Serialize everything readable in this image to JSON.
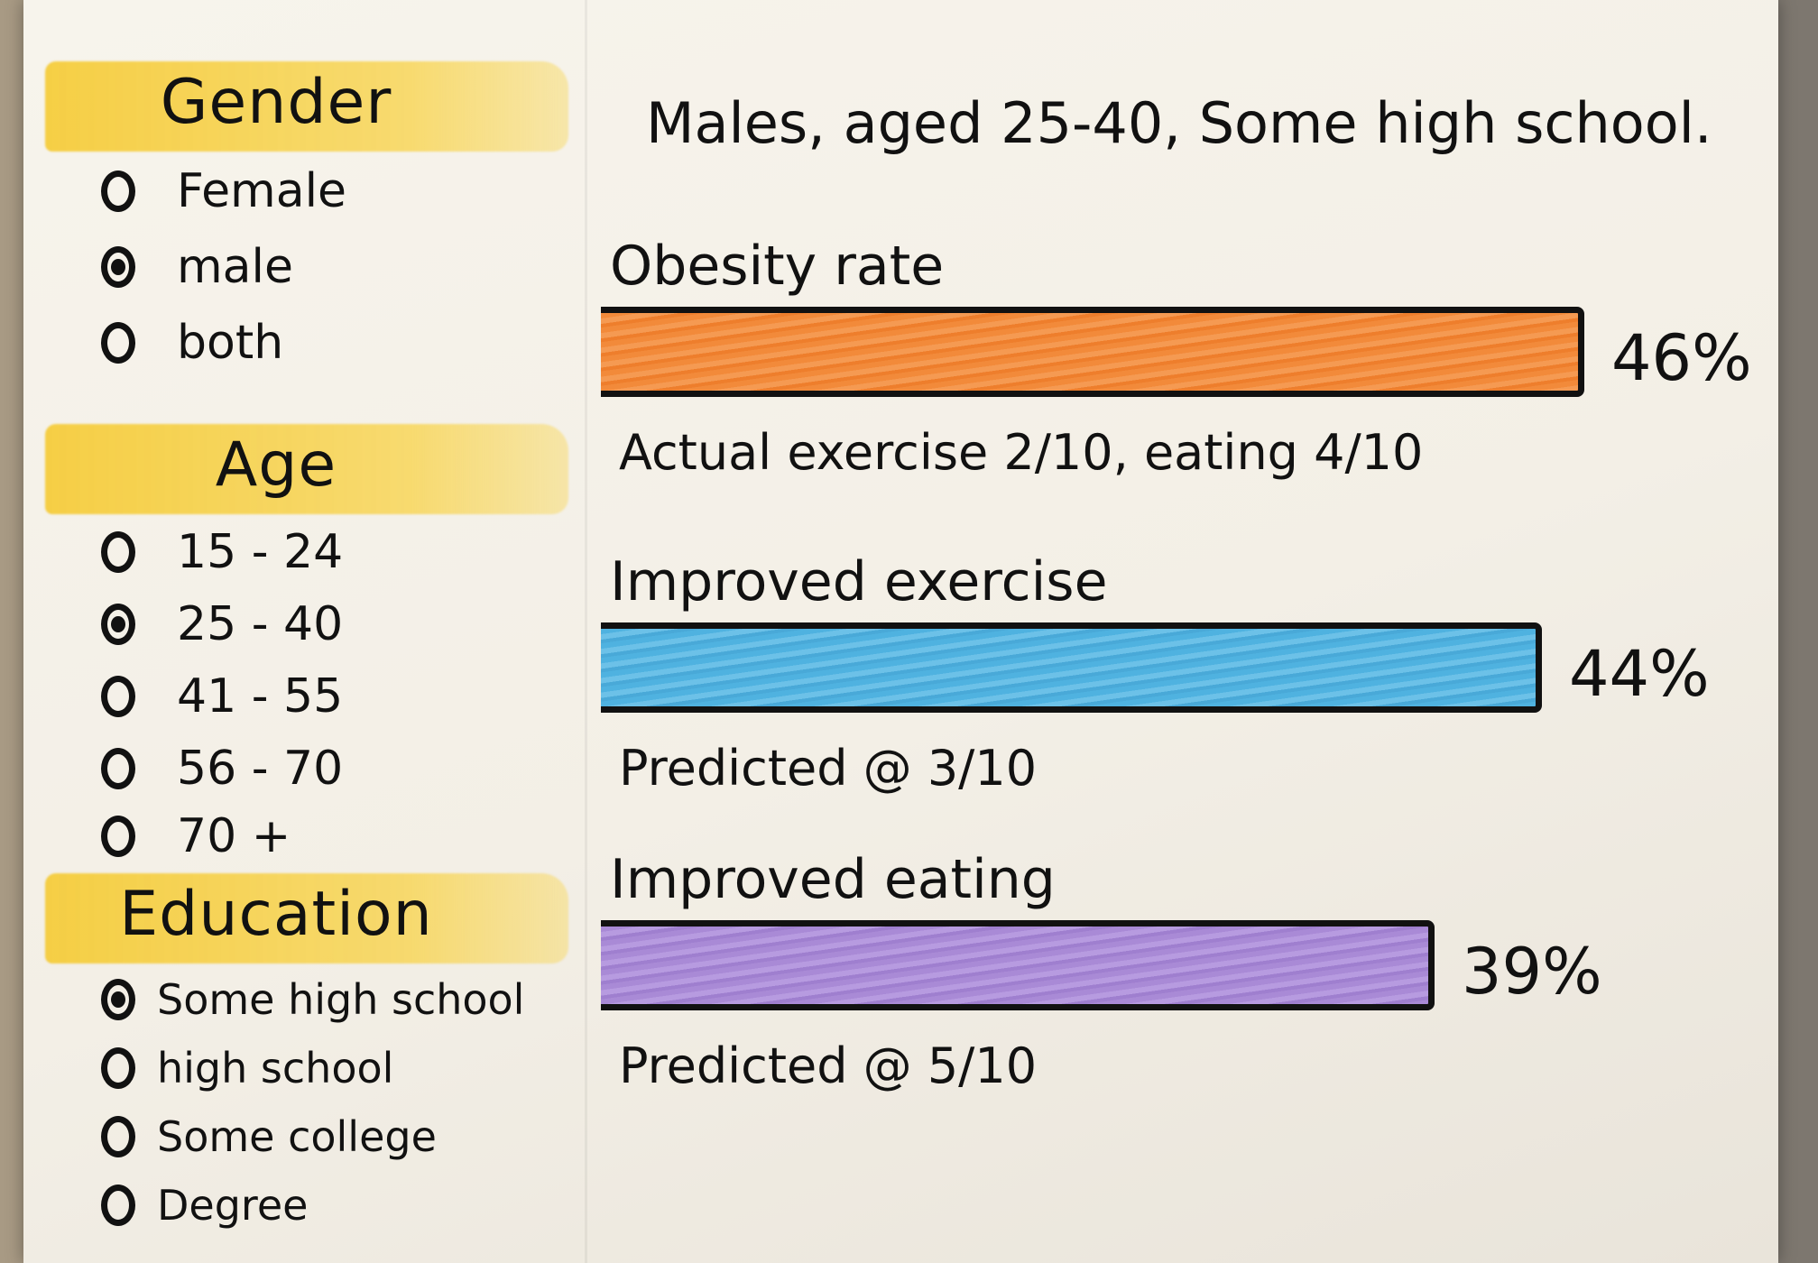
{
  "filters": {
    "gender": {
      "title": "Gender",
      "options": [
        {
          "label": "Female",
          "selected": false
        },
        {
          "label": "male",
          "selected": true
        },
        {
          "label": "both",
          "selected": false
        }
      ]
    },
    "age": {
      "title": "Age",
      "options": [
        {
          "label": "15 - 24",
          "selected": false
        },
        {
          "label": "25 - 40",
          "selected": true
        },
        {
          "label": "41 - 55",
          "selected": false
        },
        {
          "label": "56 - 70",
          "selected": false
        },
        {
          "label": "70 +",
          "selected": false
        }
      ]
    },
    "education": {
      "title": "Education",
      "options": [
        {
          "label": "Some high school",
          "selected": true
        },
        {
          "label": "high school",
          "selected": false
        },
        {
          "label": "Some college",
          "selected": false
        },
        {
          "label": "Degree",
          "selected": false
        }
      ]
    }
  },
  "results": {
    "summary": "Males, aged 25-40, Some high school.",
    "metrics": [
      {
        "title": "Obesity rate",
        "value": 46,
        "value_label": "46%",
        "note": "Actual exercise 2/10, eating 4/10",
        "color": "#f28a3a"
      },
      {
        "title": "Improved exercise",
        "value": 44,
        "value_label": "44%",
        "note": "Predicted @ 3/10",
        "color": "#4fb2e0"
      },
      {
        "title": "Improved eating",
        "value": 39,
        "value_label": "39%",
        "note": "Predicted @ 5/10",
        "color": "#a98ad6"
      }
    ]
  }
}
